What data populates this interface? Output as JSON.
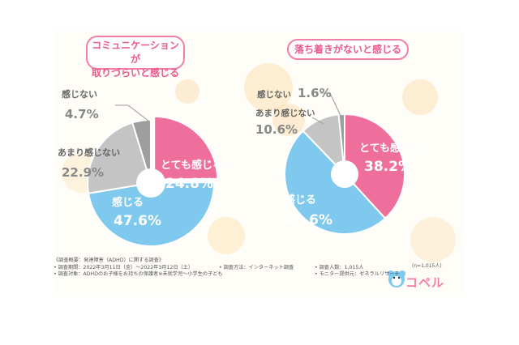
{
  "title_left": [
    "コミュニケーションが",
    "取りづらいと感じる"
  ],
  "title_right": "落ち着きがないと感じる",
  "colors": {
    "pink": "#ee6f9b",
    "blue": "#7fc9ee",
    "gray": "#c4c4c4",
    "darkgray": "#9e9e9e"
  },
  "chart_data": [
    {
      "type": "pie",
      "title": "コミュニケーションが取りづらいと感じる",
      "slices": [
        {
          "label": "とても感じる",
          "value": 24.8,
          "color": "#ee6f9b"
        },
        {
          "label": "感じる",
          "value": 47.6,
          "color": "#7fc9ee"
        },
        {
          "label": "あまり感じない",
          "value": 22.9,
          "color": "#c4c4c4"
        },
        {
          "label": "感じない",
          "value": 4.7,
          "color": "#9e9e9e"
        }
      ]
    },
    {
      "type": "pie",
      "title": "落ち着きがないと感じる",
      "slices": [
        {
          "label": "とても感じる",
          "value": 38.2,
          "color": "#ee6f9b"
        },
        {
          "label": "感じる",
          "value": 49.6,
          "color": "#7fc9ee"
        },
        {
          "label": "あまり感じない",
          "value": 10.6,
          "color": "#c4c4c4"
        },
        {
          "label": "感じない",
          "value": 1.6,
          "color": "#9e9e9e"
        }
      ]
    }
  ],
  "sample_note": "(n=1,015人)",
  "footer": {
    "overview": "《調査概要：発達障害（ADHD）に関する調査》",
    "period": "• 調査期間：2022年3月11日（金）〜2022年3月12日（土）",
    "method": "• 調査方法：インターネット調査",
    "count": "• 調査人数：1,015人",
    "target": "• 調査対象：ADHDのお子様をお持ちの保護者※未就学児〜小学生の子ども",
    "provider": "• モニター提供元：ゼネラルリサーチ"
  },
  "brand": {
    "name": "コペル",
    "icon": "bear-logo-icon"
  }
}
